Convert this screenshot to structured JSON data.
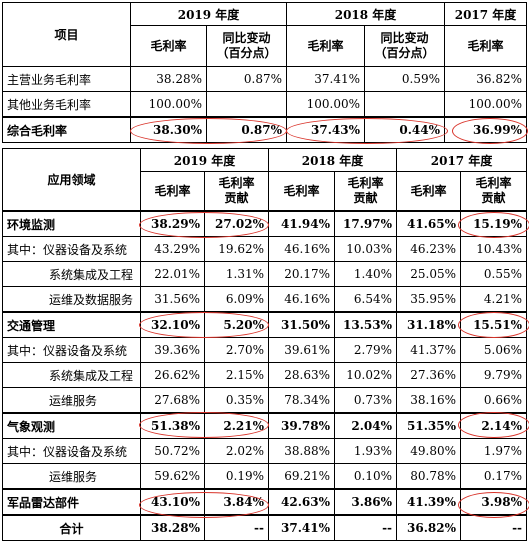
{
  "table1": {
    "header": {
      "item": "项目",
      "years": [
        "2019 年度",
        "2018 年度",
        "2017 年度"
      ],
      "gross_margin": "毛利率",
      "yoy_change_l1": "同比变动",
      "yoy_change_l2": "（百分点）"
    },
    "rows": [
      {
        "label": "主营业务毛利率",
        "c": [
          "38.28%",
          "0.87%",
          "37.41%",
          "0.59%",
          "36.82%"
        ]
      },
      {
        "label": "其他业务毛利率",
        "c": [
          "100.00%",
          "",
          "100.00%",
          "",
          "100.00%"
        ]
      },
      {
        "label": "综合毛利率",
        "c": [
          "38.30%",
          "0.87%",
          "37.43%",
          "0.44%",
          "36.99%"
        ]
      }
    ]
  },
  "table2": {
    "header": {
      "field": "应用领域",
      "years": [
        "2019 年度",
        "2018 年度",
        "2017 年度"
      ],
      "gross_margin": "毛利率",
      "contrib_l1": "毛利率",
      "contrib_l2": "贡献"
    },
    "rows": [
      {
        "label": "环境监测",
        "c": [
          "38.29%",
          "27.02%",
          "41.94%",
          "17.97%",
          "41.65%",
          "15.19%"
        ]
      },
      {
        "label": "其中：仪器设备及系统",
        "c": [
          "43.29%",
          "19.62%",
          "46.16%",
          "10.03%",
          "46.23%",
          "10.43%"
        ]
      },
      {
        "label": "系统集成及工程",
        "c": [
          "22.01%",
          "1.31%",
          "20.17%",
          "1.40%",
          "25.05%",
          "0.55%"
        ]
      },
      {
        "label": "运维及数据服务",
        "c": [
          "31.56%",
          "6.09%",
          "46.16%",
          "6.54%",
          "35.95%",
          "4.21%"
        ]
      },
      {
        "label": "交通管理",
        "c": [
          "32.10%",
          "5.20%",
          "31.50%",
          "13.53%",
          "31.18%",
          "15.51%"
        ]
      },
      {
        "label": "其中：仪器设备及系统",
        "c": [
          "39.36%",
          "2.70%",
          "39.61%",
          "2.79%",
          "41.37%",
          "5.06%"
        ]
      },
      {
        "label": "系统集成及工程",
        "c": [
          "26.62%",
          "2.15%",
          "28.63%",
          "10.02%",
          "27.36%",
          "9.79%"
        ]
      },
      {
        "label": "运维服务",
        "c": [
          "27.68%",
          "0.35%",
          "78.34%",
          "0.73%",
          "38.16%",
          "0.66%"
        ]
      },
      {
        "label": "气象观测",
        "c": [
          "51.38%",
          "2.21%",
          "39.78%",
          "2.04%",
          "51.35%",
          "2.14%"
        ]
      },
      {
        "label": "其中：仪器设备及系统",
        "c": [
          "50.72%",
          "2.02%",
          "38.88%",
          "1.93%",
          "49.80%",
          "1.97%"
        ]
      },
      {
        "label": "运维服务",
        "c": [
          "59.62%",
          "0.19%",
          "69.21%",
          "0.10%",
          "80.78%",
          "0.17%"
        ]
      },
      {
        "label": "军品雷达部件",
        "c": [
          "43.10%",
          "3.84%",
          "42.63%",
          "3.86%",
          "41.39%",
          "3.98%"
        ]
      },
      {
        "label": "合计",
        "c": [
          "38.28%",
          "--",
          "37.41%",
          "--",
          "36.82%",
          "--"
        ]
      }
    ]
  }
}
